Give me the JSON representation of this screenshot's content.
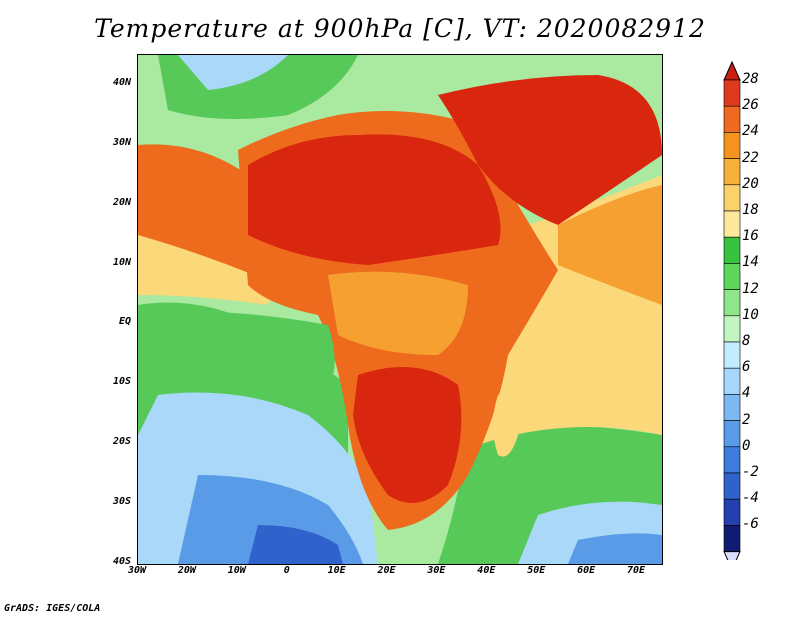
{
  "title": "Temperature at 900hPa [C], VT: 2020082912",
  "credit": "GrADS: IGES/COLA",
  "map": {
    "lon_range": [
      -30,
      75
    ],
    "lat_range": [
      -40,
      45
    ],
    "y_ticks": [
      {
        "lat": 40,
        "label": "40N"
      },
      {
        "lat": 30,
        "label": "30N"
      },
      {
        "lat": 20,
        "label": "20N"
      },
      {
        "lat": 10,
        "label": "10N"
      },
      {
        "lat": 0,
        "label": "EQ"
      },
      {
        "lat": -10,
        "label": "10S"
      },
      {
        "lat": -20,
        "label": "20S"
      },
      {
        "lat": -30,
        "label": "30S"
      },
      {
        "lat": -40,
        "label": "40S"
      }
    ],
    "x_ticks": [
      {
        "lon": -30,
        "label": "30W"
      },
      {
        "lon": -20,
        "label": "20W"
      },
      {
        "lon": -10,
        "label": "10W"
      },
      {
        "lon": 0,
        "label": "0"
      },
      {
        "lon": 10,
        "label": "10E"
      },
      {
        "lon": 20,
        "label": "20E"
      },
      {
        "lon": 30,
        "label": "30E"
      },
      {
        "lon": 40,
        "label": "40E"
      },
      {
        "lon": 50,
        "label": "50E"
      },
      {
        "lon": 60,
        "label": "60E"
      },
      {
        "lon": 70,
        "label": "70E"
      }
    ]
  },
  "colorbar": {
    "labels": [
      "28",
      "26",
      "24",
      "22",
      "20",
      "18",
      "16",
      "14",
      "12",
      "10",
      "8",
      "6",
      "4",
      "2",
      "0",
      "-2",
      "-4",
      "-6"
    ],
    "colors": [
      "#e03a1e",
      "#ed6a1f",
      "#f4941e",
      "#f7b13b",
      "#fad16a",
      "#fde99c",
      "#39c23d",
      "#5cd65b",
      "#8fe68a",
      "#c2f5c0",
      "#c4ecff",
      "#a6d6fb",
      "#7db8f2",
      "#5a9be8",
      "#3e7bdc",
      "#2f62cb",
      "#233fb0",
      "#101c74"
    ],
    "over_color": "#c81e14",
    "under_color": "#dcdcff"
  },
  "colors": {
    "hot": "#d9260f",
    "warm": "#ee6a1d",
    "orange": "#f5a030",
    "yellow": "#fbd97a",
    "green": "#56c958",
    "lightgreen": "#a9e9a0",
    "lightblue": "#a9d8f8",
    "blue": "#5a9be8",
    "deepblue": "#2f62cb"
  }
}
